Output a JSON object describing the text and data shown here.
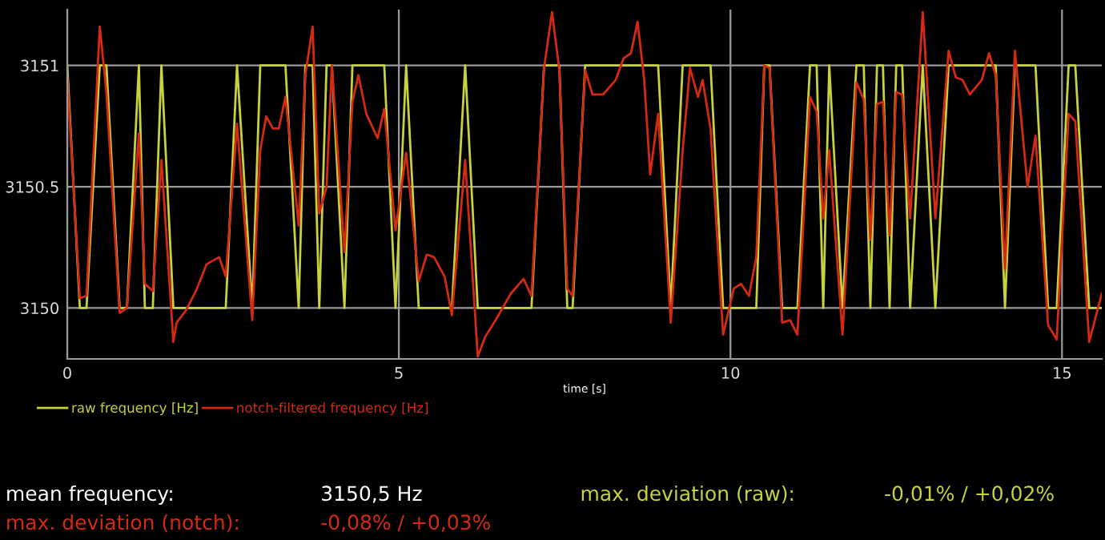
{
  "chart_data": {
    "type": "line",
    "xlabel": "time [s]",
    "xlim": [
      0,
      15.6
    ],
    "ylim": [
      3149.79,
      3151.23
    ],
    "xticks": [
      0,
      5,
      10,
      15
    ],
    "yticks": [
      3150,
      3150.5,
      3151
    ],
    "grid": true,
    "legend": "bottom left",
    "marker": "none",
    "line_style": "solid",
    "series": [
      {
        "name": "raw frequency [Hz]",
        "color": "#c8d23c",
        "x": [
          0,
          0.19,
          0.29,
          0.49,
          0.59,
          0.79,
          0.9,
          1.08,
          1.17,
          1.29,
          1.42,
          1.6,
          1.65,
          1.79,
          1.94,
          2.1,
          2.29,
          2.39,
          2.56,
          2.79,
          2.91,
          3.0,
          3.1,
          3.19,
          3.29,
          3.49,
          3.59,
          3.7,
          3.8,
          3.91,
          3.99,
          4.18,
          4.3,
          4.39,
          4.51,
          4.68,
          4.78,
          4.95,
          5.11,
          5.3,
          5.42,
          5.53,
          5.69,
          5.8,
          6.0,
          6.19,
          6.3,
          6.46,
          6.69,
          6.88,
          7.0,
          7.19,
          7.31,
          7.42,
          7.54,
          7.62,
          7.81,
          7.92,
          8.08,
          8.27,
          8.39,
          8.5,
          8.6,
          8.7,
          8.79,
          8.91,
          9.1,
          9.28,
          9.39,
          9.51,
          9.58,
          9.7,
          9.89,
          10.05,
          10.16,
          10.28,
          10.39,
          10.51,
          10.59,
          10.78,
          10.9,
          11.01,
          11.2,
          11.3,
          11.4,
          11.49,
          11.69,
          11.9,
          12.01,
          12.11,
          12.21,
          12.3,
          12.4,
          12.5,
          12.59,
          12.71,
          12.9,
          13.09,
          13.29,
          13.4,
          13.5,
          13.61,
          13.79,
          13.9,
          14.0,
          14.14,
          14.29,
          14.48,
          14.6,
          14.79,
          14.92,
          15.1,
          15.2,
          15.41,
          15.6
        ],
        "values": [
          3151,
          3150,
          3150,
          3151,
          3151,
          3150,
          3150,
          3151,
          3150,
          3150,
          3151,
          3150,
          3150,
          3150,
          3150,
          3150,
          3150,
          3150,
          3151,
          3150,
          3151,
          3151,
          3151,
          3151,
          3151,
          3150,
          3151,
          3151,
          3150,
          3151,
          3151,
          3150,
          3151,
          3151,
          3151,
          3151,
          3151,
          3150,
          3151,
          3150,
          3150,
          3150,
          3150,
          3150,
          3151,
          3150,
          3150,
          3150,
          3150,
          3150,
          3150,
          3151,
          3151,
          3151,
          3150,
          3150,
          3151,
          3151,
          3151,
          3151,
          3151,
          3151,
          3151,
          3151,
          3151,
          3151,
          3150,
          3151,
          3151,
          3151,
          3151,
          3151,
          3150,
          3150,
          3150,
          3150,
          3150,
          3151,
          3151,
          3150,
          3150,
          3150,
          3151,
          3151,
          3150,
          3151,
          3150,
          3151,
          3151,
          3150,
          3151,
          3151,
          3150,
          3151,
          3151,
          3150,
          3151,
          3150,
          3151,
          3151,
          3151,
          3151,
          3151,
          3151,
          3151,
          3150,
          3151,
          3151,
          3151,
          3150,
          3150,
          3151,
          3151,
          3150,
          3150
        ]
      },
      {
        "name": "notch-filtered frequency [Hz]",
        "color": "#d42a12",
        "x": [
          0,
          0.19,
          0.29,
          0.49,
          0.59,
          0.79,
          0.9,
          1.08,
          1.17,
          1.29,
          1.42,
          1.6,
          1.65,
          1.79,
          1.94,
          2.1,
          2.29,
          2.39,
          2.56,
          2.79,
          2.91,
          3.0,
          3.1,
          3.19,
          3.29,
          3.49,
          3.59,
          3.7,
          3.8,
          3.91,
          3.99,
          4.18,
          4.3,
          4.39,
          4.51,
          4.68,
          4.78,
          4.95,
          5.11,
          5.3,
          5.42,
          5.53,
          5.69,
          5.8,
          6.0,
          6.19,
          6.3,
          6.46,
          6.69,
          6.88,
          7.0,
          7.19,
          7.31,
          7.42,
          7.54,
          7.62,
          7.81,
          7.92,
          8.08,
          8.27,
          8.39,
          8.5,
          8.6,
          8.7,
          8.79,
          8.91,
          9.1,
          9.28,
          9.39,
          9.51,
          9.58,
          9.7,
          9.89,
          10.05,
          10.16,
          10.28,
          10.39,
          10.51,
          10.59,
          10.78,
          10.9,
          11.01,
          11.2,
          11.3,
          11.4,
          11.49,
          11.69,
          11.9,
          12.01,
          12.11,
          12.21,
          12.3,
          12.4,
          12.5,
          12.59,
          12.71,
          12.9,
          13.09,
          13.29,
          13.4,
          13.5,
          13.61,
          13.79,
          13.9,
          14.0,
          14.14,
          14.29,
          14.48,
          14.6,
          14.79,
          14.92,
          15.1,
          15.2,
          15.41,
          15.6
        ],
        "values": [
          3150.95,
          3150.04,
          3150.05,
          3151.16,
          3150.89,
          3149.98,
          3150.0,
          3150.72,
          3150.1,
          3150.07,
          3150.61,
          3149.86,
          3149.94,
          3149.99,
          3150.07,
          3150.18,
          3150.21,
          3150.13,
          3150.76,
          3149.95,
          3150.65,
          3150.79,
          3150.74,
          3150.74,
          3150.87,
          3150.34,
          3150.96,
          3151.16,
          3150.39,
          3150.5,
          3151.0,
          3150.23,
          3150.85,
          3150.96,
          3150.8,
          3150.7,
          3150.82,
          3150.32,
          3150.64,
          3150.11,
          3150.22,
          3150.21,
          3150.13,
          3149.97,
          3150.61,
          3149.8,
          3149.88,
          3149.95,
          3150.06,
          3150.12,
          3150.05,
          3150.99,
          3151.22,
          3150.98,
          3150.08,
          3150.05,
          3150.98,
          3150.88,
          3150.88,
          3150.94,
          3151.03,
          3151.05,
          3151.18,
          3150.94,
          3150.55,
          3150.8,
          3149.94,
          3150.65,
          3150.99,
          3150.87,
          3150.94,
          3150.74,
          3149.89,
          3150.08,
          3150.1,
          3150.05,
          3150.21,
          3151.0,
          3150.99,
          3149.94,
          3149.95,
          3149.89,
          3150.87,
          3150.81,
          3150.37,
          3150.65,
          3149.89,
          3150.93,
          3150.86,
          3150.28,
          3150.84,
          3150.85,
          3150.3,
          3150.89,
          3150.88,
          3150.37,
          3151.22,
          3150.37,
          3151.06,
          3150.95,
          3150.94,
          3150.88,
          3150.94,
          3151.05,
          3150.96,
          3150.16,
          3151.06,
          3150.5,
          3150.71,
          3149.93,
          3149.87,
          3150.8,
          3150.77,
          3149.86,
          3150.06
        ]
      }
    ],
    "annotations": [
      "mean frequency:",
      "3150,5 Hz",
      "max. deviation (raw):",
      "-0,01% / +0,02%",
      "max. deviation (notch):",
      "-0,08% / +0,03%"
    ]
  }
}
